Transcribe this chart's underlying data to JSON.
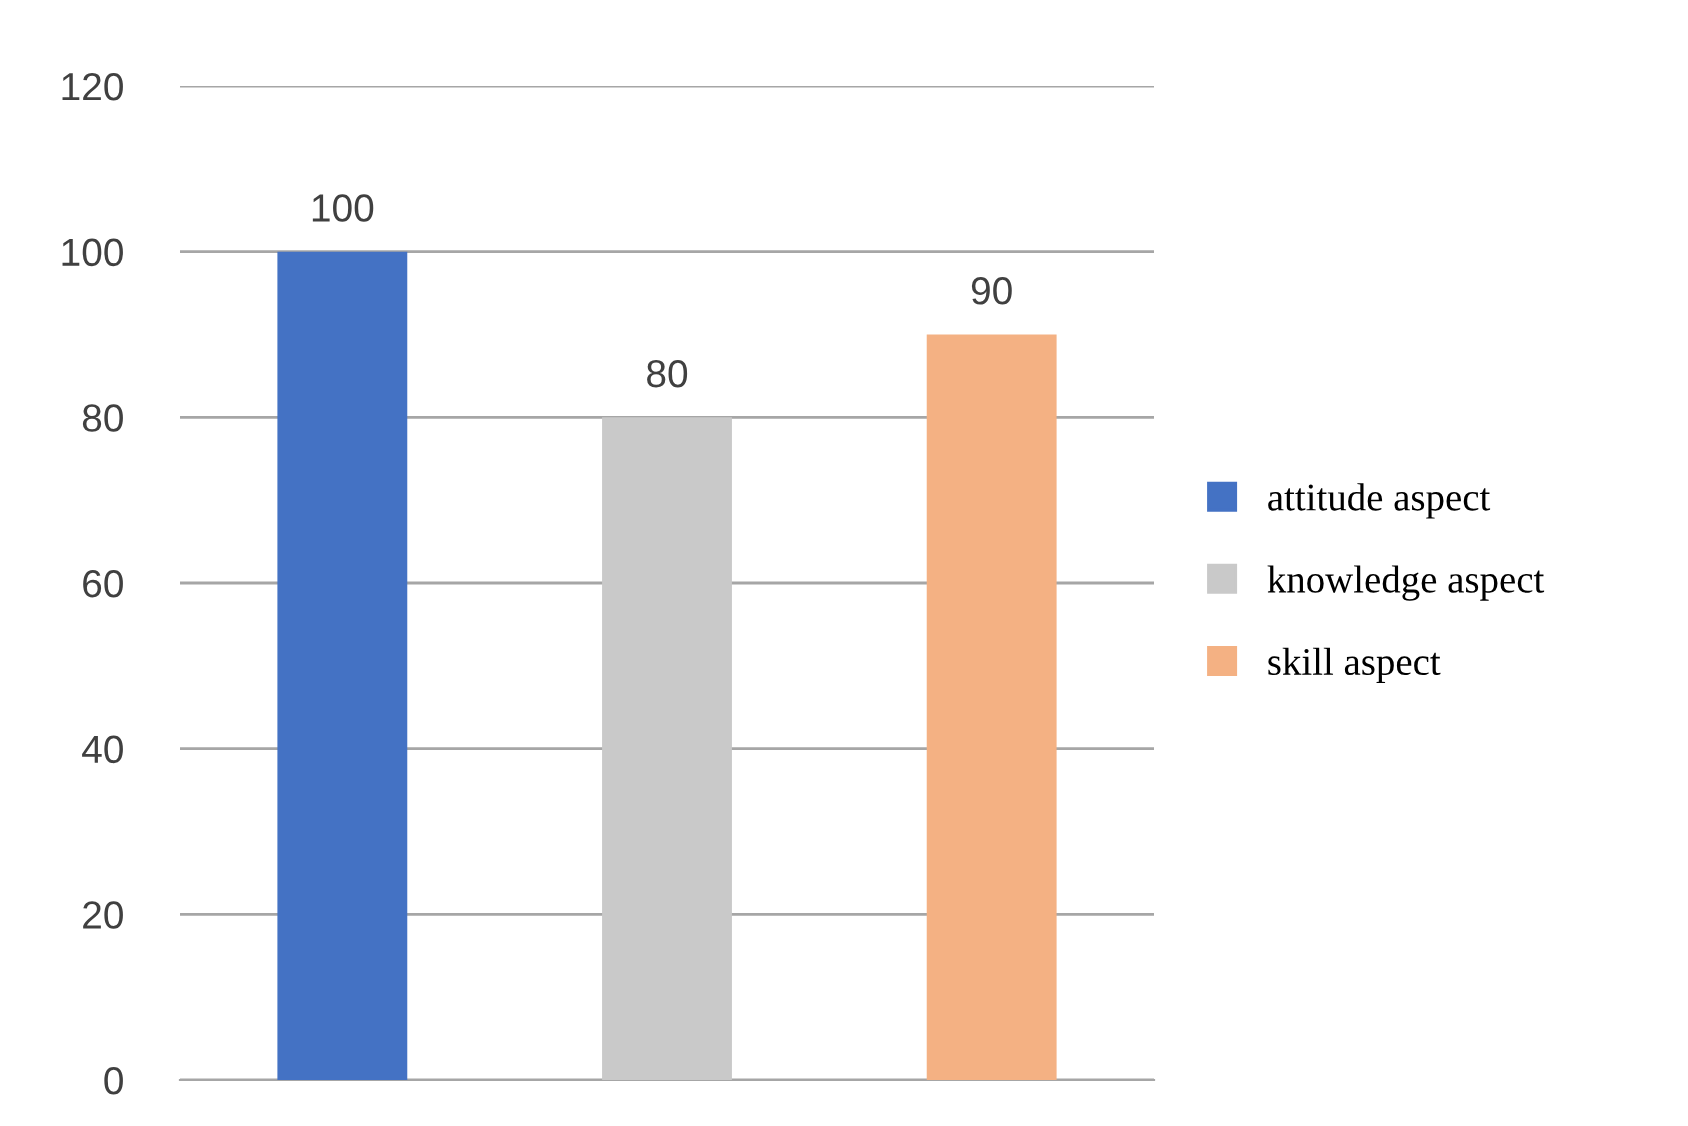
{
  "chart_data": {
    "type": "bar",
    "categories": [
      null,
      null,
      null
    ],
    "series": [
      {
        "name": "attitude aspect",
        "color": "#4472c4",
        "values": [
          100,
          null,
          null
        ]
      },
      {
        "name": "knowledge aspect",
        "color": "#c9c9c9",
        "values": [
          null,
          80,
          null
        ]
      },
      {
        "name": "skill aspect",
        "color": "#f4b183",
        "values": [
          null,
          null,
          90
        ]
      }
    ],
    "ylim": [
      0,
      120
    ],
    "yticks": [
      0,
      20,
      40,
      60,
      80,
      100,
      120
    ],
    "grid": "y",
    "legend": "right",
    "data_labels": true
  }
}
